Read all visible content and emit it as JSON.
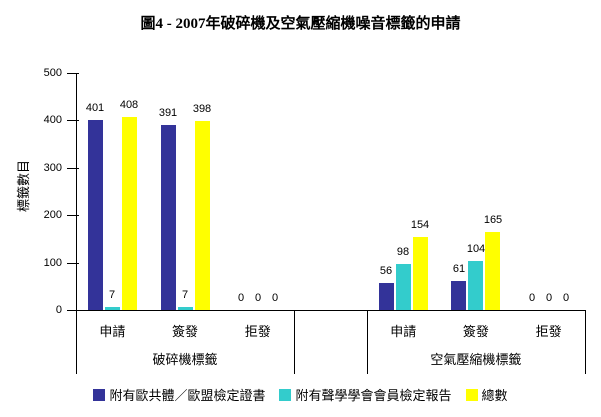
{
  "page": {
    "background": "#FFFFFF"
  },
  "chart_data": {
    "type": "bar",
    "title": "圖4 - 2007年破碎機及空氣壓縮機噪音標籤的申請",
    "ylabel": "標籤數目",
    "xlabel": "",
    "ylim": [
      0,
      500
    ],
    "y_ticks": [
      0,
      100,
      200,
      300,
      400,
      500
    ],
    "grid": false,
    "legend_position": "bottom",
    "axis_color": "#000000",
    "groups": [
      {
        "label": "破碎機標籤",
        "categories": [
          "申請",
          "簽發",
          "拒發"
        ]
      },
      {
        "label": "空氣壓縮機標籤",
        "categories": [
          "申請",
          "簽發",
          "拒發"
        ]
      }
    ],
    "series": [
      {
        "name": "附有歐共體／歐盟檢定證書",
        "color": "#333399",
        "values": [
          [
            401,
            391,
            0
          ],
          [
            56,
            61,
            0
          ]
        ]
      },
      {
        "name": "附有聲學學會會員檢定報告",
        "color": "#33CCCC",
        "values": [
          [
            7,
            7,
            0
          ],
          [
            98,
            104,
            0
          ]
        ]
      },
      {
        "name": "總數",
        "color": "#FFFF00",
        "values": [
          [
            408,
            398,
            0
          ],
          [
            154,
            165,
            0
          ]
        ]
      }
    ]
  }
}
